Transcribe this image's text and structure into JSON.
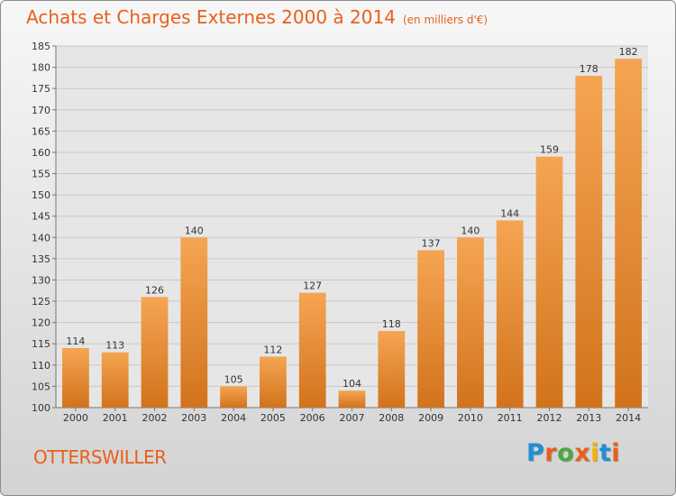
{
  "header": {
    "title": "Achats et Charges Externes 2000 à 2014",
    "unit": "(en milliers d'€)"
  },
  "footer": {
    "commune": "OTTERSWILLER",
    "logo_text": "Proxiti",
    "logo_colors": [
      "#1e8fd6",
      "#e8601c",
      "#49a942",
      "#e8601c",
      "#f2b300",
      "#1e8fd6",
      "#e8601c"
    ]
  },
  "colors": {
    "accent": "#e8601c",
    "bar_light": "#f5a552",
    "bar_dark": "#d2731c",
    "grid": "#c8c8c8"
  },
  "chart_data": {
    "type": "bar",
    "categories": [
      "2000",
      "2001",
      "2002",
      "2003",
      "2004",
      "2005",
      "2006",
      "2007",
      "2008",
      "2009",
      "2010",
      "2011",
      "2012",
      "2013",
      "2014"
    ],
    "values": [
      114,
      113,
      126,
      140,
      105,
      112,
      127,
      104,
      118,
      137,
      140,
      144,
      159,
      178,
      182
    ],
    "ylim": [
      100,
      185
    ],
    "yticks": [
      100,
      105,
      110,
      115,
      120,
      125,
      130,
      135,
      140,
      145,
      150,
      155,
      160,
      165,
      170,
      175,
      180,
      185
    ],
    "grid": true,
    "legend": "none"
  }
}
